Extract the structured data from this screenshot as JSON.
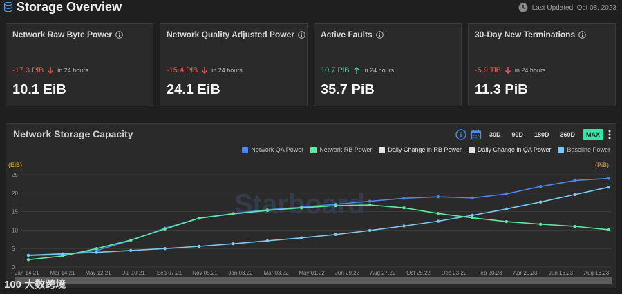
{
  "header": {
    "title": "Storage Overview",
    "last_updated": "Last Updated: Oct 08, 2023"
  },
  "cards": [
    {
      "title": "Network Raw Byte Power",
      "change": "-17.3 PiB",
      "direction": "down",
      "period": "in 24 hours",
      "value": "10.1 EiB"
    },
    {
      "title": "Network Quality Adjusted Power",
      "change": "-15.4 PiB",
      "direction": "down",
      "period": "in 24 hours",
      "value": "24.1 EiB"
    },
    {
      "title": "Active Faults",
      "change": "10.7 PiB",
      "direction": "up",
      "period": "in 24 hours",
      "value": "35.7 PiB"
    },
    {
      "title": "30-Day New Terminations",
      "change": "-5.9 TiB",
      "direction": "down",
      "period": "in 24 hours",
      "value": "11.3 PiB"
    }
  ],
  "chart_panel": {
    "title": "Network Storage Capacity",
    "ranges": [
      "30D",
      "90D",
      "180D",
      "360D",
      "MAX"
    ],
    "active_range": "MAX",
    "left_unit": "(EiB)",
    "right_unit": "(PiB)",
    "watermark": "Starboard"
  },
  "corner_badge": "100 大数跨境",
  "colors": {
    "qa": "#4a86e8",
    "rb": "#5ee8a0",
    "daily_rb": "#e0e0e0",
    "daily_qa": "#e0e0e0",
    "baseline": "#7cc8f0",
    "negative": "#ff5a5a",
    "positive": "#43d6a6",
    "accent": "#36e6a8"
  },
  "chart_data": {
    "type": "line",
    "title": "Network Storage Capacity",
    "ylabel": "(EiB)",
    "y2label": "(PiB)",
    "ylim": [
      0,
      25
    ],
    "yticks": [
      0,
      5,
      10,
      15,
      20,
      25
    ],
    "grid": true,
    "legend_position": "top-right",
    "x_tick_labels": [
      "Jan 14,21",
      "Mar 14,21",
      "May 12,21",
      "Jul 10,21",
      "Sep 07,21",
      "Nov 05,21",
      "Jan 03,22",
      "Mar 03,22",
      "May 01,22",
      "Jun 29,22",
      "Aug 27,22",
      "Oct 25,22",
      "Dec 23,22",
      "Feb 20,23",
      "Apr 20,23",
      "Jun 18,23",
      "Aug 16,23"
    ],
    "series": [
      {
        "name": "Network QA Power",
        "values": [
          3.1,
          3.4,
          4.5,
          7.2,
          10.5,
          13.2,
          14.5,
          15.5,
          16.2,
          17.0,
          17.8,
          18.6,
          19.0,
          18.7,
          19.8,
          21.8,
          23.4,
          24.0
        ]
      },
      {
        "name": "Network RB Power",
        "values": [
          2.0,
          3.0,
          5.0,
          7.3,
          10.3,
          13.2,
          14.4,
          15.3,
          16.0,
          16.6,
          16.8,
          16.0,
          14.5,
          13.3,
          12.3,
          11.6,
          11.0,
          10.1
        ]
      },
      {
        "name": "Daily Change in RB Power",
        "values": []
      },
      {
        "name": "Daily Change in QA Power",
        "values": []
      },
      {
        "name": "Baseline Power",
        "values": [
          3.2,
          3.6,
          4.0,
          4.5,
          5.0,
          5.6,
          6.3,
          7.1,
          7.9,
          8.8,
          9.9,
          11.1,
          12.4,
          14.0,
          15.7,
          17.6,
          19.6,
          21.6
        ]
      }
    ]
  }
}
